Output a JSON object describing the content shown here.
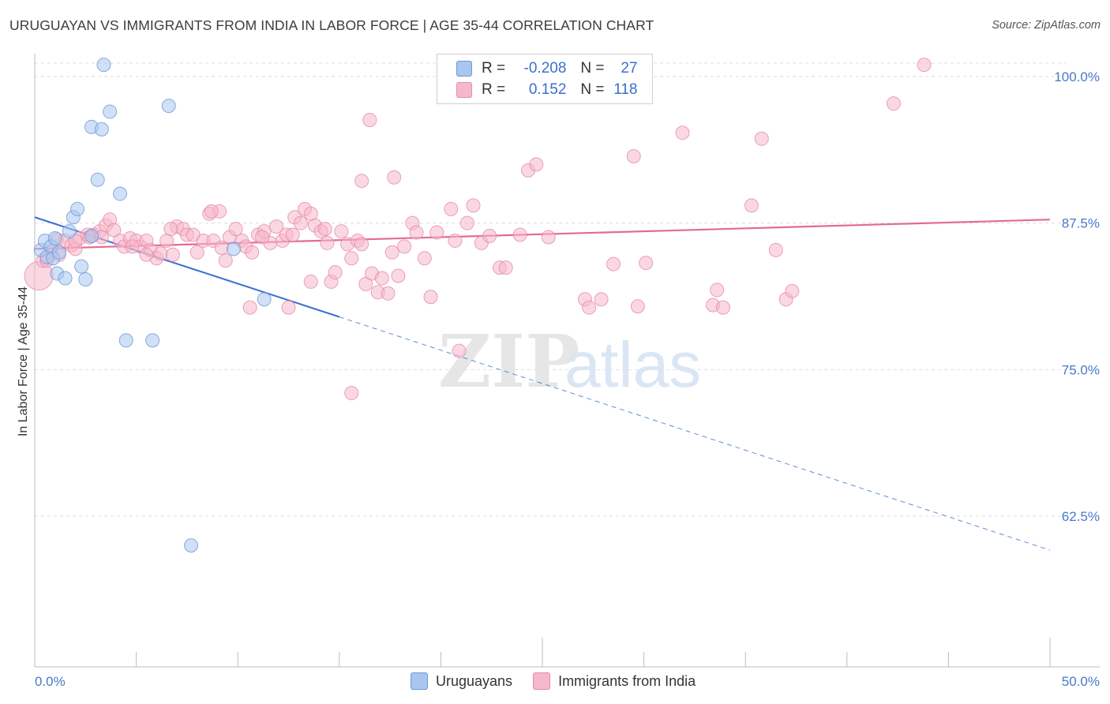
{
  "title": "URUGUAYAN VS IMMIGRANTS FROM INDIA IN LABOR FORCE | AGE 35-44 CORRELATION CHART",
  "source": "Source: ZipAtlas.com",
  "watermark": {
    "zip": "ZIP",
    "atlas": "atlas"
  },
  "legend": {
    "rows": [
      {
        "r_label": "R =",
        "r_value": "-0.208",
        "n_label": "N =",
        "n_value": "27"
      },
      {
        "r_label": "R =",
        "r_value": "0.152",
        "n_label": "N =",
        "n_value": "118"
      }
    ]
  },
  "bottom_legend": {
    "series1": "Uruguayans",
    "series2": "Immigrants from India"
  },
  "colors": {
    "blue_fill": "#a9c6f0",
    "blue_stroke": "#6b98d8",
    "blue_line": "#3a6fd0",
    "pink_fill": "#f5b8cb",
    "pink_stroke": "#e88aa8",
    "pink_line": "#e26b94",
    "grid": "#dddddd",
    "tick_text": "#4a78c8"
  },
  "chart_data": {
    "type": "scatter",
    "title": "URUGUAYAN VS IMMIGRANTS FROM INDIA IN LABOR FORCE | AGE 35-44 CORRELATION CHART",
    "xlabel": "",
    "ylabel": "In Labor Force | Age 35-44",
    "xlim": [
      0,
      50
    ],
    "ylim": [
      50,
      101
    ],
    "x_tick_labels": [
      "0.0%",
      "50.0%"
    ],
    "y_ticks": [
      62.5,
      75.0,
      87.5,
      100.0
    ],
    "y_tick_labels": [
      "62.5%",
      "75.0%",
      "87.5%",
      "100.0%"
    ],
    "grid": true,
    "legend_position": "top-center",
    "series": [
      {
        "name": "Uruguayans",
        "r": -0.208,
        "n": 27,
        "trend": {
          "x0": 0,
          "y0": 88.0,
          "x1": 15.0,
          "y1": 79.5,
          "dash_to_x": 50.0,
          "dash_to_y": 59.6
        },
        "points": [
          [
            0.3,
            85.2
          ],
          [
            0.5,
            86.0
          ],
          [
            0.6,
            84.6
          ],
          [
            0.8,
            85.5
          ],
          [
            0.9,
            84.5
          ],
          [
            1.0,
            86.2
          ],
          [
            1.1,
            83.2
          ],
          [
            1.2,
            85.0
          ],
          [
            1.5,
            82.8
          ],
          [
            1.7,
            86.8
          ],
          [
            1.9,
            88.0
          ],
          [
            2.1,
            88.7
          ],
          [
            2.3,
            83.8
          ],
          [
            2.5,
            82.7
          ],
          [
            2.8,
            86.4
          ],
          [
            2.8,
            95.7
          ],
          [
            3.1,
            91.2
          ],
          [
            3.3,
            95.5
          ],
          [
            3.4,
            101.0
          ],
          [
            3.7,
            97.0
          ],
          [
            4.2,
            90.0
          ],
          [
            4.5,
            77.5
          ],
          [
            5.8,
            77.5
          ],
          [
            6.6,
            97.5
          ],
          [
            7.7,
            60.0
          ],
          [
            9.8,
            85.3
          ],
          [
            11.3,
            81.0
          ]
        ]
      },
      {
        "name": "Immigrants from India",
        "r": 0.152,
        "n": 118,
        "trend": {
          "x0": 0,
          "y0": 85.3,
          "x1": 50.0,
          "y1": 87.8
        },
        "points": [
          [
            0.2,
            83.0
          ],
          [
            0.4,
            84.3
          ],
          [
            0.8,
            85.0
          ],
          [
            1.1,
            86.1
          ],
          [
            1.5,
            86.0
          ],
          [
            1.8,
            85.6
          ],
          [
            2.0,
            85.3
          ],
          [
            2.2,
            86.2
          ],
          [
            2.6,
            86.5
          ],
          [
            2.9,
            86.5
          ],
          [
            3.2,
            86.8
          ],
          [
            3.5,
            87.3
          ],
          [
            3.7,
            87.8
          ],
          [
            3.9,
            86.9
          ],
          [
            4.2,
            86.0
          ],
          [
            4.4,
            85.5
          ],
          [
            4.7,
            86.2
          ],
          [
            5.0,
            86.0
          ],
          [
            5.2,
            85.5
          ],
          [
            5.5,
            86.0
          ],
          [
            5.7,
            85.2
          ],
          [
            6.0,
            84.5
          ],
          [
            6.2,
            84.9
          ],
          [
            6.5,
            86.0
          ],
          [
            6.8,
            84.8
          ],
          [
            7.0,
            87.2
          ],
          [
            7.3,
            87.0
          ],
          [
            7.5,
            86.5
          ],
          [
            7.8,
            86.5
          ],
          [
            8.0,
            85.0
          ],
          [
            8.3,
            86.0
          ],
          [
            8.6,
            88.3
          ],
          [
            8.8,
            86.0
          ],
          [
            9.1,
            88.5
          ],
          [
            9.4,
            84.3
          ],
          [
            9.6,
            86.3
          ],
          [
            9.9,
            87.0
          ],
          [
            10.2,
            86.0
          ],
          [
            10.4,
            85.5
          ],
          [
            10.7,
            85.0
          ],
          [
            11.0,
            86.5
          ],
          [
            11.3,
            86.8
          ],
          [
            11.6,
            85.8
          ],
          [
            11.9,
            87.2
          ],
          [
            12.2,
            86.0
          ],
          [
            12.4,
            86.5
          ],
          [
            12.8,
            88.0
          ],
          [
            13.1,
            87.5
          ],
          [
            13.3,
            88.7
          ],
          [
            13.6,
            82.5
          ],
          [
            13.8,
            87.3
          ],
          [
            14.1,
            86.8
          ],
          [
            14.3,
            87.0
          ],
          [
            14.6,
            82.5
          ],
          [
            14.8,
            83.3
          ],
          [
            15.1,
            86.8
          ],
          [
            15.4,
            85.7
          ],
          [
            15.6,
            84.5
          ],
          [
            15.9,
            86.0
          ],
          [
            16.1,
            85.7
          ],
          [
            16.3,
            82.3
          ],
          [
            16.6,
            83.2
          ],
          [
            16.9,
            81.6
          ],
          [
            17.1,
            82.8
          ],
          [
            17.4,
            81.5
          ],
          [
            17.6,
            85.0
          ],
          [
            17.9,
            83.0
          ],
          [
            18.6,
            87.5
          ],
          [
            18.8,
            86.7
          ],
          [
            19.5,
            81.2
          ],
          [
            19.8,
            86.7
          ],
          [
            20.5,
            88.7
          ],
          [
            20.7,
            86.0
          ],
          [
            21.3,
            87.5
          ],
          [
            21.6,
            89.0
          ],
          [
            22.0,
            85.8
          ],
          [
            22.4,
            86.4
          ],
          [
            22.9,
            83.7
          ],
          [
            23.2,
            83.7
          ],
          [
            23.9,
            86.5
          ],
          [
            24.3,
            92.0
          ],
          [
            24.7,
            92.5
          ],
          [
            25.3,
            86.3
          ],
          [
            27.1,
            81.0
          ],
          [
            27.3,
            80.3
          ],
          [
            27.9,
            81.0
          ],
          [
            28.5,
            84.0
          ],
          [
            29.5,
            93.2
          ],
          [
            29.7,
            80.4
          ],
          [
            30.1,
            84.1
          ],
          [
            31.9,
            95.2
          ],
          [
            33.4,
            80.5
          ],
          [
            33.6,
            81.8
          ],
          [
            33.9,
            80.3
          ],
          [
            35.3,
            89.0
          ],
          [
            35.8,
            94.7
          ],
          [
            36.5,
            85.2
          ],
          [
            37.0,
            81.0
          ],
          [
            37.3,
            81.7
          ],
          [
            16.5,
            96.3
          ],
          [
            16.1,
            91.1
          ],
          [
            17.7,
            91.4
          ],
          [
            15.6,
            73.0
          ],
          [
            20.9,
            76.6
          ],
          [
            42.3,
            97.7
          ],
          [
            43.8,
            101.0
          ],
          [
            10.6,
            80.3
          ],
          [
            12.5,
            80.3
          ],
          [
            13.6,
            88.3
          ],
          [
            8.7,
            88.5
          ],
          [
            9.2,
            85.4
          ],
          [
            6.7,
            87.0
          ],
          [
            5.5,
            84.8
          ],
          [
            2.7,
            86.3
          ],
          [
            3.3,
            86.3
          ],
          [
            0.6,
            84.3
          ],
          [
            1.2,
            84.8
          ],
          [
            2.0,
            86.0
          ],
          [
            4.8,
            85.5
          ],
          [
            11.2,
            86.3
          ],
          [
            12.7,
            86.5
          ],
          [
            14.4,
            85.8
          ],
          [
            18.2,
            85.5
          ],
          [
            19.2,
            84.5
          ]
        ]
      }
    ]
  }
}
